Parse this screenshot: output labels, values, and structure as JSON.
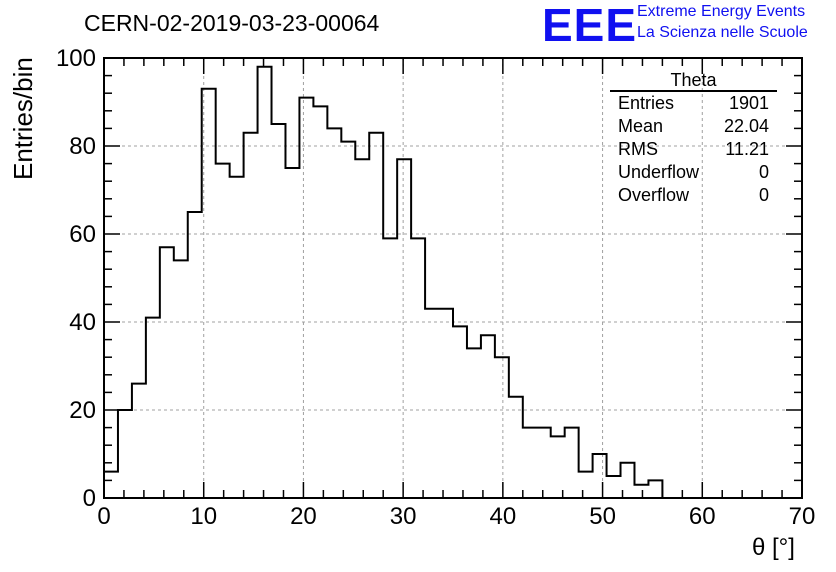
{
  "header": {
    "run_title": "CERN-02-2019-03-23-00064",
    "logo_text": "EEE",
    "logo_line1": "Extreme Energy Events",
    "logo_line2": "La Scienza nelle Scuole"
  },
  "stats_box": {
    "title": "Theta",
    "rows": [
      {
        "label": "Entries",
        "value": "1901"
      },
      {
        "label": "Mean",
        "value": "22.04"
      },
      {
        "label": "RMS",
        "value": "11.21"
      },
      {
        "label": "Underflow",
        "value": "0"
      },
      {
        "label": "Overflow",
        "value": "0"
      }
    ]
  },
  "colors": {
    "histogram_line": "#000000",
    "grid": "#a0a0a0",
    "logo": "#1010f0"
  },
  "chart_data": {
    "type": "bar",
    "style": "step-histogram",
    "title": "CERN-02-2019-03-23-00064",
    "xlabel": "θ [°]",
    "ylabel": "Entries/bin",
    "xlim": [
      0,
      70
    ],
    "ylim": [
      0,
      100
    ],
    "bin_width": 1.4,
    "x_ticks": [
      0,
      10,
      20,
      30,
      40,
      50,
      60,
      70
    ],
    "y_ticks": [
      0,
      20,
      40,
      60,
      80,
      100
    ],
    "grid": true,
    "legend": "top-right stats box",
    "bin_edges_start": 0,
    "values": [
      6,
      20,
      26,
      41,
      57,
      54,
      65,
      93,
      76,
      73,
      83,
      98,
      85,
      75,
      91,
      89,
      84,
      81,
      77,
      83,
      59,
      77,
      59,
      43,
      43,
      39,
      34,
      37,
      32,
      23,
      16,
      16,
      14,
      16,
      6,
      10,
      5,
      8,
      3,
      4,
      0,
      0,
      0,
      0,
      0,
      0,
      0,
      0,
      0,
      0
    ]
  }
}
